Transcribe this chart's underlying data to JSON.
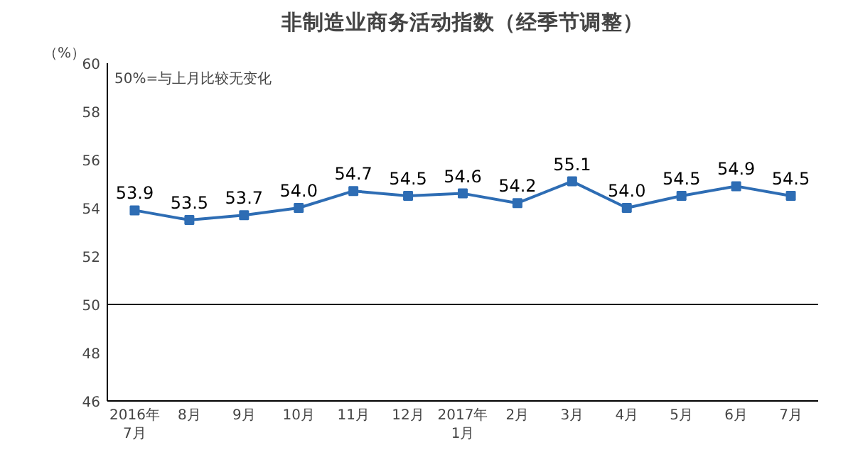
{
  "chart_data": {
    "type": "line",
    "title": "非制造业商务活动指数（经季节调整）",
    "ylabel": "（%）",
    "annotations": [
      "50%=与上月比较无变化"
    ],
    "categories": [
      "2016年\n7月",
      "8月",
      "9月",
      "10月",
      "11月",
      "12月",
      "2017年\n1月",
      "2月",
      "3月",
      "4月",
      "5月",
      "6月",
      "7月"
    ],
    "series": [
      {
        "color": "#2e6db4",
        "values": [
          53.9,
          53.5,
          53.7,
          54.0,
          54.7,
          54.5,
          54.6,
          54.2,
          55.1,
          54.0,
          54.5,
          54.9,
          54.5
        ],
        "value_labels": [
          "53.9",
          "53.5",
          "53.7",
          "54.0",
          "54.7",
          "54.5",
          "54.6",
          "54.2",
          "55.1",
          "54.0",
          "54.5",
          "54.9",
          "54.5"
        ]
      }
    ],
    "ylim": [
      46,
      60
    ],
    "yticks": [
      46,
      48,
      50,
      52,
      54,
      56,
      58,
      60
    ],
    "ref_lines": [
      {
        "axis": "y",
        "value": 50,
        "color": "#000000"
      }
    ],
    "grid": false,
    "marker": "square",
    "line_style": "solid"
  }
}
